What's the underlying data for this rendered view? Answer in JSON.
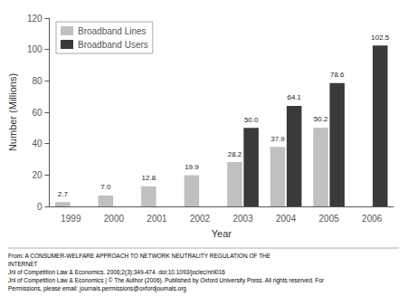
{
  "chart_data": {
    "type": "bar",
    "categories": [
      "1999",
      "2000",
      "2001",
      "2002",
      "2003",
      "2004",
      "2005",
      "2006"
    ],
    "series": [
      {
        "name": "Broadband Lines",
        "color": "#c0c0c0",
        "values": [
          2.7,
          7.0,
          12.8,
          19.9,
          28.2,
          37.9,
          50.2,
          null
        ],
        "value_labels": [
          "2.7",
          "7.0",
          "12.8",
          "19.9",
          "28.2",
          "37.9",
          "50.2",
          null
        ]
      },
      {
        "name": "Broadband Users",
        "color": "#3a3a3a",
        "values": [
          null,
          null,
          null,
          null,
          50.0,
          64.1,
          78.6,
          102.5
        ],
        "value_labels": [
          null,
          null,
          null,
          null,
          "50.0",
          "64.1",
          "78.6",
          "102.5"
        ]
      }
    ],
    "xlabel": "Year",
    "ylabel": "Number (Millions)",
    "ylim": [
      0,
      120
    ],
    "yticks": [
      0,
      20,
      40,
      60,
      80,
      100,
      120
    ],
    "grid": false,
    "legend": "upper left",
    "data_labels": true,
    "annotations": [
      "From: A CONSUMER-WELFARE APPROACH TO NETWORK NEUTRALITY REGULATION OF THE",
      "INTERNET",
      "Jnl of Competition Law & Economics. 2006;2(3):349-474. doi:10.1093/joclec/nhl016",
      "Jnl of Competition Law & Economics | © The Author (2006). Published by Oxford University Press. All rights reserved. For",
      "Permissions, please email: journals.permissions@oxfordjournals.org"
    ]
  }
}
